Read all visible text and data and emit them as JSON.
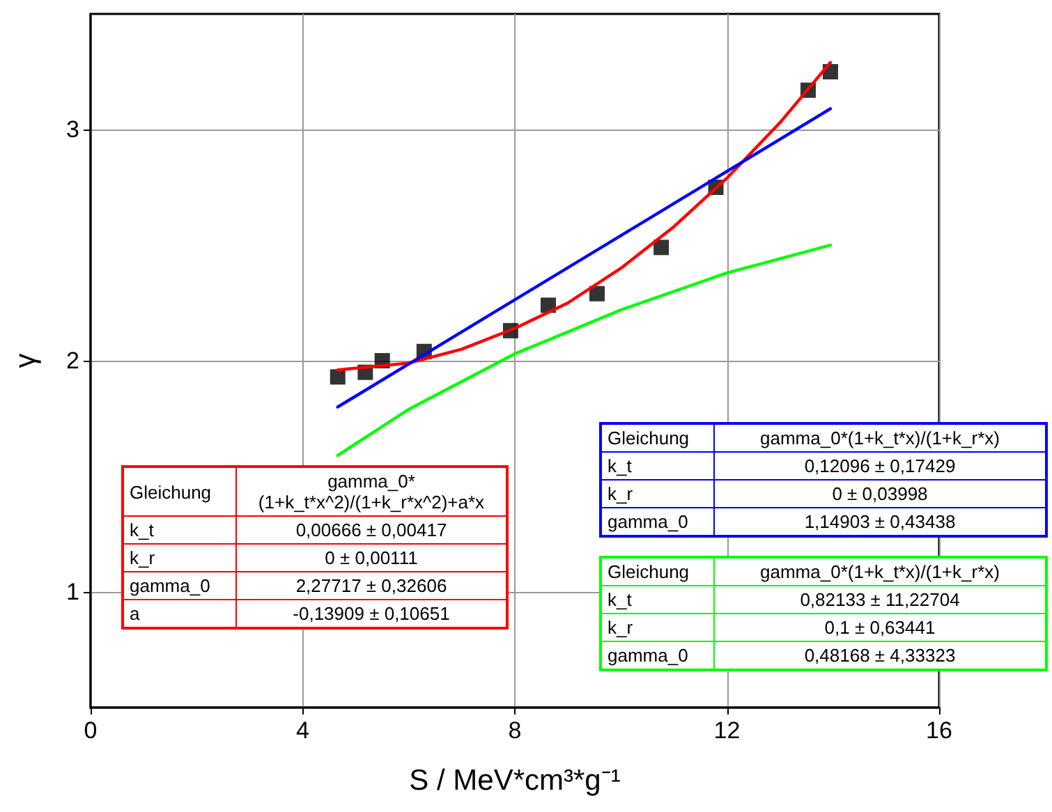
{
  "chart_data": {
    "type": "scatter",
    "xlabel": "S / MeV*cm³*g⁻¹",
    "ylabel": "γ",
    "xlim": [
      0,
      16
    ],
    "xticks": [
      0,
      4,
      8,
      12,
      16
    ],
    "ylim": [
      0.5,
      3.5
    ],
    "yticks": [
      1,
      2,
      3
    ],
    "grid": true,
    "series": [
      {
        "marker": "square",
        "color": "#000000",
        "x": [
          4.66,
          5.18,
          5.5,
          6.29,
          7.92,
          8.63,
          9.55,
          10.76,
          11.79,
          13.53,
          13.95
        ],
        "values": [
          1.93,
          1.95,
          2.0,
          2.04,
          2.13,
          2.24,
          2.29,
          2.49,
          2.75,
          3.17,
          3.25
        ]
      },
      {
        "type": "line",
        "marker": "none",
        "color": "#ff0000",
        "x": [
          4.66,
          6,
          7,
          8,
          9,
          10,
          11,
          12,
          13,
          13.95
        ],
        "values": [
          1.96,
          1.99,
          2.05,
          2.14,
          2.25,
          2.4,
          2.58,
          2.79,
          3.03,
          3.29
        ]
      },
      {
        "type": "line",
        "marker": "none",
        "color": "#0000ff",
        "x": [
          4.66,
          13.95
        ],
        "values": [
          1.8,
          3.09
        ]
      },
      {
        "type": "line",
        "marker": "none",
        "color": "#00ff00",
        "x": [
          4.66,
          6,
          8,
          10,
          12,
          13.95
        ],
        "values": [
          1.59,
          1.79,
          2.03,
          2.22,
          2.38,
          2.5
        ]
      }
    ],
    "annotations": [
      "Gleichung",
      "gamma_0*(1+k_t*x^2)/(1+k_r*x^2)+a*x",
      "k_t",
      "0,00666 ± 0,00417",
      "k_r",
      "0 ± 0,00111",
      "gamma_0",
      "2,27717 ± 0,32606",
      "a",
      "-0,13909 ± 0,10651",
      "Gleichung",
      "gamma_0*(1+k_t*x)/(1+k_r*x)",
      "k_t",
      "0,12096 ± 0,17429",
      "k_r",
      "0 ± 0,03998",
      "gamma_0",
      "1,14903 ± 0,43438",
      "Gleichung",
      "gamma_0*(1+k_t*x)/(1+k_r*x)",
      "k_t",
      "0,82133 ± 11,22704",
      "k_r",
      "0,1 ± 0,63441",
      "gamma_0",
      "0,48168 ± 4,33323"
    ]
  }
}
